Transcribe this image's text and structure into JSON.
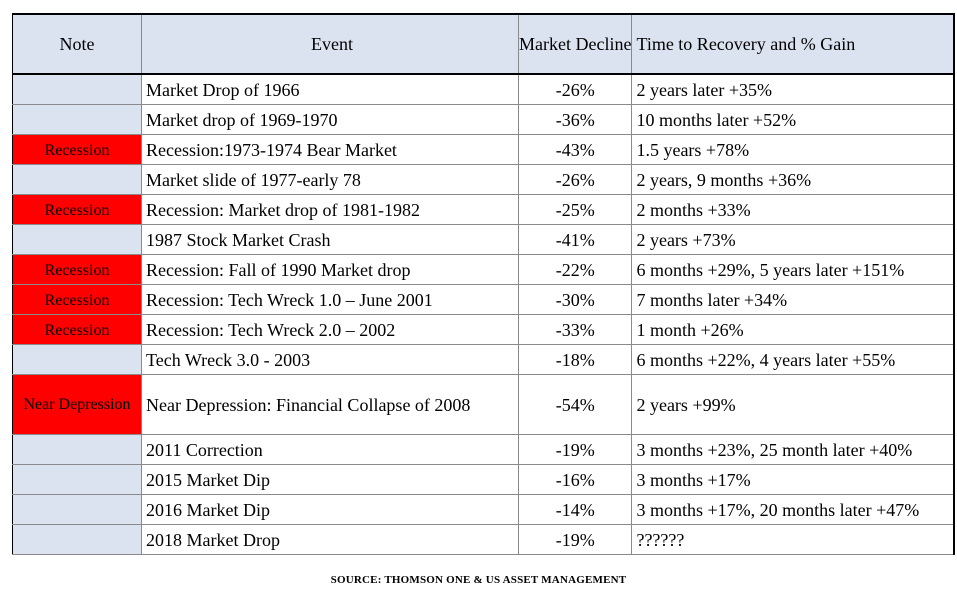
{
  "headers": {
    "note": "Note",
    "event": "Event",
    "decline": "Market Decline",
    "time": "Time to Recovery and % Gain"
  },
  "colors": {
    "header_bg": "#dce3f0",
    "note_bg": "#dce3f0",
    "recession_bg": "#ff0000"
  },
  "rows": [
    {
      "note": "",
      "event": "Market Drop of 1966",
      "decline": "-26%",
      "time": "2 years later +35%"
    },
    {
      "note": "",
      "event": "Market drop of 1969-1970",
      "decline": "-36%",
      "time": "10 months later +52%"
    },
    {
      "note": "Recession",
      "event": "Recession:1973-1974 Bear Market",
      "decline": "-43%",
      "time": "1.5 years +78%"
    },
    {
      "note": "",
      "event": "Market slide of 1977-early 78",
      "decline": "-26%",
      "time": "2 years, 9 months +36%"
    },
    {
      "note": "Recession",
      "event": "Recession: Market drop of 1981-1982",
      "decline": "-25%",
      "time": "2 months +33%"
    },
    {
      "note": "",
      "event": "1987 Stock Market Crash",
      "decline": "-41%",
      "time": "2 years +73%"
    },
    {
      "note": "Recession",
      "event": "Recession: Fall of 1990 Market drop",
      "decline": "-22%",
      "time": "6 months +29%, 5 years later +151%"
    },
    {
      "note": "Recession",
      "event": "Recession: Tech Wreck 1.0 – June 2001",
      "decline": "-30%",
      "time": "7 months later +34%"
    },
    {
      "note": "Recession",
      "event": "Recession: Tech Wreck 2.0 – 2002",
      "decline": "-33%",
      "time": "1 month +26%"
    },
    {
      "note": "",
      "event": "Tech Wreck 3.0 - 2003",
      "decline": "-18%",
      "time": "6 months +22%, 4 years later +55%"
    },
    {
      "note": "Near Depression",
      "event": "Near Depression: Financial Collapse of 2008",
      "decline": "-54%",
      "time": "2 years +99%"
    },
    {
      "note": "",
      "event": "2011 Correction",
      "decline": "-19%",
      "time": "3 months +23%, 25 month later +40%"
    },
    {
      "note": "",
      "event": "2015 Market Dip",
      "decline": "-16%",
      "time": "3 months +17%"
    },
    {
      "note": "",
      "event": "2016 Market Dip",
      "decline": "-14%",
      "time": "3 months +17%, 20 months later +47%"
    },
    {
      "note": "",
      "event": "2018 Market Drop",
      "decline": "-19%",
      "time": "??????"
    }
  ],
  "source": "SOURCE: THOMSON ONE & US ASSET MANAGEMENT"
}
